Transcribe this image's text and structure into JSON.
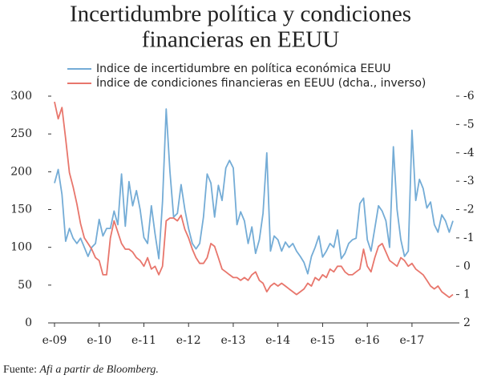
{
  "chart_data": {
    "type": "line",
    "title": [
      "Incertidumbre política y condiciones",
      "financieras en EEUU"
    ],
    "source": [
      "Fuente: ",
      "Afi a partir de Bloomberg."
    ],
    "categories": [
      "e-09",
      null,
      null,
      null,
      null,
      null,
      null,
      null,
      null,
      null,
      null,
      null,
      "e-10",
      null,
      null,
      null,
      null,
      null,
      null,
      null,
      null,
      null,
      null,
      null,
      "e-11",
      null,
      null,
      null,
      null,
      null,
      null,
      null,
      null,
      null,
      null,
      null,
      "e-12",
      null,
      null,
      null,
      null,
      null,
      null,
      null,
      null,
      null,
      null,
      null,
      "e-13",
      null,
      null,
      null,
      null,
      null,
      null,
      null,
      null,
      null,
      null,
      null,
      "e-14",
      null,
      null,
      null,
      null,
      null,
      null,
      null,
      null,
      null,
      null,
      null,
      "e-15",
      null,
      null,
      null,
      null,
      null,
      null,
      null,
      null,
      null,
      null,
      null,
      "e-16",
      null,
      null,
      null,
      null,
      null,
      null,
      null,
      null,
      null,
      null,
      null,
      "e-17",
      null,
      null,
      null,
      null,
      null,
      null,
      null,
      null,
      null,
      null,
      null
    ],
    "series": [
      {
        "name": "Indice de incertidumbre en política económica EEUU",
        "color": "#74acd6",
        "axis": "y",
        "values": [
          185,
          203,
          170,
          108,
          125,
          112,
          105,
          112,
          100,
          88,
          100,
          105,
          137,
          115,
          125,
          125,
          148,
          130,
          197,
          128,
          187,
          155,
          175,
          150,
          113,
          105,
          155,
          118,
          85,
          160,
          283,
          200,
          140,
          145,
          183,
          150,
          125,
          105,
          98,
          105,
          140,
          197,
          185,
          140,
          182,
          162,
          205,
          215,
          205,
          130,
          147,
          135,
          105,
          127,
          92,
          110,
          145,
          225,
          95,
          115,
          110,
          95,
          107,
          100,
          105,
          95,
          88,
          80,
          65,
          88,
          100,
          115,
          87,
          95,
          105,
          100,
          123,
          85,
          92,
          105,
          110,
          112,
          158,
          165,
          110,
          95,
          125,
          155,
          148,
          135,
          100,
          233,
          150,
          110,
          88,
          95,
          255,
          162,
          190,
          178,
          152,
          160,
          130,
          120,
          143,
          135,
          120,
          135
        ]
      },
      {
        "name": "Índice de condiciones financieras en EEUU (dcha., inverso)",
        "color": "#e8766c",
        "axis": "y2",
        "values": [
          -5.8,
          -5.2,
          -5.6,
          -4.5,
          -3.3,
          -2.8,
          -2.2,
          -1.5,
          -1.0,
          -0.8,
          -0.6,
          -0.3,
          -0.2,
          0.3,
          0.3,
          -1.0,
          -1.6,
          -1.2,
          -0.8,
          -0.6,
          -0.6,
          -0.5,
          -0.3,
          -0.2,
          0.0,
          -0.3,
          0.1,
          0.0,
          0.3,
          0.0,
          -1.6,
          -1.7,
          -1.7,
          -1.6,
          -1.8,
          -1.3,
          -1.0,
          -0.6,
          -0.3,
          -0.1,
          -0.1,
          -0.3,
          -0.8,
          -0.7,
          -0.3,
          0.1,
          0.2,
          0.3,
          0.4,
          0.4,
          0.5,
          0.4,
          0.5,
          0.3,
          0.2,
          0.5,
          0.6,
          0.9,
          0.7,
          0.6,
          0.7,
          0.6,
          0.7,
          0.8,
          0.9,
          1.0,
          0.9,
          0.8,
          0.6,
          0.7,
          0.4,
          0.5,
          0.3,
          0.4,
          0.1,
          0.2,
          0.0,
          0.0,
          0.2,
          0.3,
          0.3,
          0.2,
          0.1,
          -0.6,
          0.0,
          0.2,
          -0.3,
          -0.7,
          -0.8,
          -0.5,
          -0.2,
          -0.1,
          0.0,
          -0.3,
          -0.2,
          0.0,
          -0.1,
          0.1,
          0.2,
          0.3,
          0.5,
          0.7,
          0.8,
          0.7,
          0.9,
          1.0,
          1.1,
          1.0
        ]
      }
    ],
    "ylim": [
      0,
      300
    ],
    "yticks": [
      0,
      50,
      100,
      150,
      200,
      250,
      300
    ],
    "y2lim": [
      2,
      -6
    ],
    "y2ticks": [
      2,
      1,
      0,
      -1,
      -2,
      -3,
      -4,
      -5,
      -6
    ],
    "grid": false
  }
}
